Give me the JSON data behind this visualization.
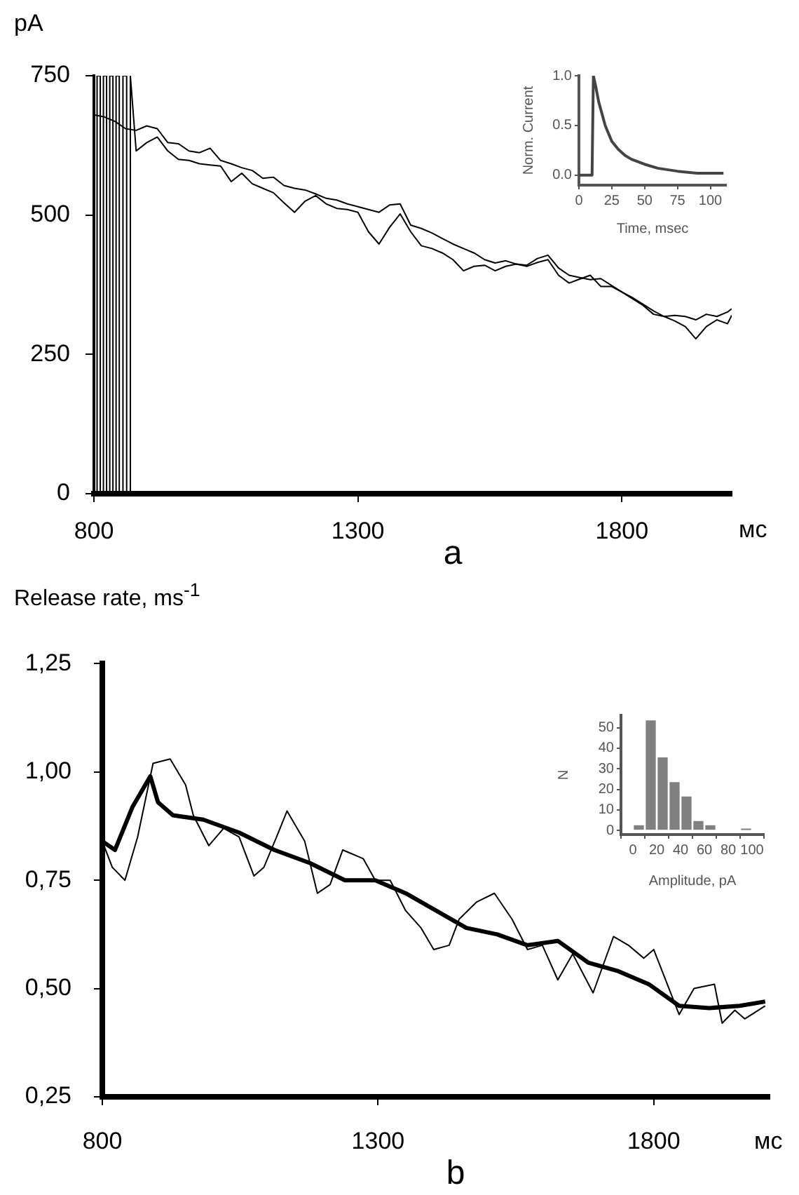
{
  "chart_data": [
    {
      "type": "line",
      "title": "a",
      "xlabel": "мс",
      "ylabel": "pA",
      "xlim": [
        800,
        2008
      ],
      "ylim": [
        0,
        750
      ],
      "xticks": [
        800,
        1300,
        1800
      ],
      "yticks": [
        0,
        250,
        500,
        750
      ],
      "series": [
        {
          "color": "#000000",
          "x": [
            800,
            820,
            840,
            860,
            880,
            900,
            920,
            940,
            960,
            980,
            1000,
            1020,
            1040,
            1060,
            1080,
            1100,
            1120,
            1140,
            1160,
            1180,
            1200,
            1220,
            1240,
            1260,
            1280,
            1300,
            1320,
            1340,
            1360,
            1380,
            1400,
            1420,
            1440,
            1460,
            1480,
            1500,
            1520,
            1540,
            1560,
            1580,
            1600,
            1620,
            1640,
            1660,
            1680,
            1700,
            1720,
            1740,
            1760,
            1780,
            1800,
            1820,
            1840,
            1860,
            1880,
            1900,
            1920,
            1940,
            1960,
            1980,
            2000,
            2008
          ],
          "values": [
            680,
            676,
            668,
            655,
            652,
            660,
            655,
            630,
            628,
            615,
            612,
            620,
            598,
            592,
            585,
            580,
            566,
            568,
            553,
            548,
            545,
            538,
            530,
            527,
            520,
            515,
            510,
            505,
            518,
            520,
            482,
            476,
            468,
            458,
            448,
            440,
            432,
            420,
            414,
            418,
            412,
            410,
            422,
            428,
            405,
            392,
            388,
            384,
            386,
            374,
            362,
            352,
            340,
            328,
            318,
            320,
            318,
            312,
            322,
            318,
            326,
            332
          ]
        },
        {
          "color": "#000000",
          "x": [
            800,
            800,
            806,
            806,
            812,
            812,
            818,
            818,
            824,
            824,
            830,
            830,
            836,
            836,
            842,
            842,
            848,
            848,
            855,
            855,
            862,
            862,
            869,
            869,
            880,
            900,
            920,
            940,
            960,
            980,
            1000,
            1020,
            1040,
            1060,
            1080,
            1100,
            1120,
            1140,
            1160,
            1180,
            1200,
            1220,
            1240,
            1260,
            1280,
            1300,
            1320,
            1340,
            1360,
            1380,
            1400,
            1420,
            1440,
            1460,
            1480,
            1500,
            1520,
            1540,
            1560,
            1580,
            1600,
            1620,
            1640,
            1660,
            1680,
            1700,
            1720,
            1740,
            1760,
            1780,
            1800,
            1820,
            1840,
            1860,
            1880,
            1900,
            1920,
            1940,
            1960,
            1980,
            2000,
            2008
          ],
          "values": [
            750,
            0,
            0,
            750,
            750,
            0,
            0,
            750,
            750,
            0,
            0,
            750,
            750,
            0,
            0,
            750,
            750,
            0,
            0,
            750,
            750,
            0,
            0,
            750,
            615,
            630,
            640,
            615,
            600,
            598,
            592,
            590,
            588,
            560,
            575,
            556,
            548,
            540,
            522,
            505,
            525,
            535,
            520,
            512,
            510,
            505,
            470,
            448,
            478,
            502,
            470,
            445,
            440,
            432,
            420,
            400,
            408,
            410,
            400,
            408,
            412,
            408,
            415,
            420,
            392,
            378,
            385,
            392,
            372,
            372,
            362,
            350,
            338,
            322,
            318,
            310,
            300,
            278,
            300,
            312,
            305,
            320
          ]
        }
      ]
    },
    {
      "type": "line",
      "xlabel": "Time, msec",
      "ylabel": "Norm. Current",
      "xlim": [
        0,
        112
      ],
      "ylim": [
        -0.1,
        1.0
      ],
      "xticks": [
        0,
        25,
        50,
        75,
        100
      ],
      "yticks": [
        {
          "value": 0,
          "label": "0.0"
        },
        {
          "value": 0.5,
          "label": "0.5"
        },
        {
          "value": 1,
          "label": "1.0"
        }
      ],
      "x": [
        0,
        10,
        11,
        13,
        15,
        20,
        25,
        30,
        35,
        40,
        50,
        60,
        75,
        90,
        110
      ],
      "series": [
        {
          "color": "#444444",
          "values": [
            0,
            0,
            1.0,
            0.88,
            0.74,
            0.5,
            0.34,
            0.26,
            0.2,
            0.16,
            0.11,
            0.07,
            0.04,
            0.02,
            0.02
          ]
        }
      ]
    },
    {
      "type": "line",
      "title": "b",
      "xlabel": "мс",
      "ylabel": "Release rate, ms$^{-1}$",
      "xlim": [
        800,
        2010
      ],
      "ylim": [
        0.25,
        1.25
      ],
      "xticks": [
        800,
        1300,
        1800
      ],
      "yticks": [
        {
          "value": 0.25,
          "label": "0,25"
        },
        {
          "value": 0.5,
          "label": "0,50"
        },
        {
          "value": 0.75,
          "label": "0,75"
        },
        {
          "value": 1,
          "label": "1,00"
        },
        {
          "value": 1.25,
          "label": "1,25"
        }
      ],
      "series": [
        {
          "color": "#000000",
          "x": [
            800,
            823,
            855,
            887,
            901,
            928,
            983,
            1048,
            1112,
            1176,
            1240,
            1295,
            1350,
            1405,
            1460,
            1516,
            1571,
            1626,
            1681,
            1736,
            1791,
            1846,
            1901,
            1956,
            2002
          ],
          "values": [
            0.84,
            0.82,
            0.92,
            0.99,
            0.93,
            0.9,
            0.89,
            0.86,
            0.82,
            0.79,
            0.75,
            0.75,
            0.72,
            0.68,
            0.64,
            0.625,
            0.6,
            0.61,
            0.56,
            0.54,
            0.51,
            0.46,
            0.455,
            0.46,
            0.47
          ]
        },
        {
          "color": "#000000",
          "x": [
            800,
            818,
            841,
            864,
            892,
            923,
            951,
            965,
            993,
            1020,
            1048,
            1075,
            1093,
            1116,
            1135,
            1167,
            1190,
            1213,
            1236,
            1273,
            1295,
            1322,
            1350,
            1378,
            1401,
            1429,
            1447,
            1479,
            1511,
            1543,
            1571,
            1598,
            1626,
            1653,
            1690,
            1727,
            1754,
            1782,
            1800,
            1846,
            1873,
            1910,
            1924,
            1947,
            1965,
            2002
          ],
          "values": [
            0.84,
            0.78,
            0.75,
            0.85,
            1.02,
            1.03,
            0.97,
            0.9,
            0.83,
            0.87,
            0.85,
            0.76,
            0.78,
            0.85,
            0.91,
            0.84,
            0.72,
            0.74,
            0.82,
            0.8,
            0.75,
            0.75,
            0.68,
            0.64,
            0.59,
            0.6,
            0.66,
            0.7,
            0.72,
            0.66,
            0.59,
            0.6,
            0.52,
            0.58,
            0.49,
            0.62,
            0.6,
            0.57,
            0.59,
            0.44,
            0.5,
            0.51,
            0.42,
            0.45,
            0.43,
            0.46
          ]
        }
      ]
    },
    {
      "type": "histogram",
      "xlabel": "Amplitude, pA",
      "ylabel": "N",
      "xlim": [
        0,
        100
      ],
      "ylim": [
        -2,
        56
      ],
      "xticks": [
        0,
        20,
        40,
        60,
        80,
        100
      ],
      "yticks": [
        0,
        10,
        20,
        30,
        40,
        50
      ],
      "color": "#808080",
      "bins": [
        0,
        10,
        20,
        30,
        40,
        50,
        60,
        70,
        80,
        90,
        100
      ],
      "values": [
        3,
        54,
        36,
        24,
        17,
        5,
        3,
        0,
        0,
        1
      ]
    }
  ]
}
